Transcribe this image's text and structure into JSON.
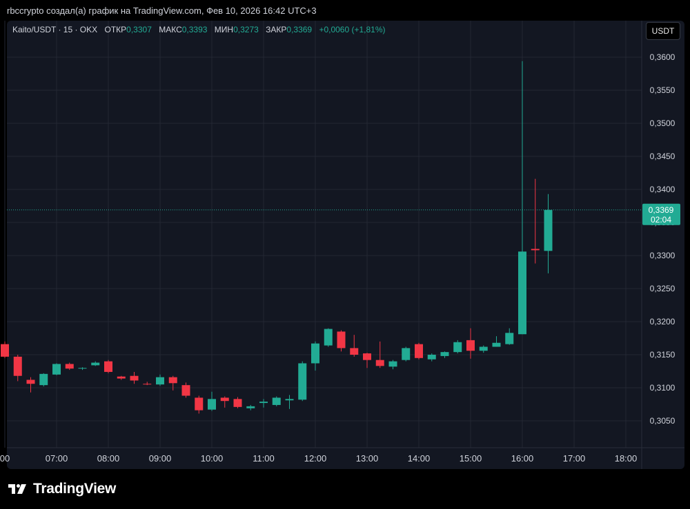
{
  "caption": "rbccrypto создал(а) график на TradingView.com, Фев 10, 2026 16:42 UTC+3",
  "legend": {
    "symbol": "Kaito/USDT · 15 · OKX",
    "open_label": "ОТКР",
    "open_value": "0,3307",
    "high_label": "МАКС",
    "high_value": "0,3393",
    "low_label": "МИН",
    "low_value": "0,3273",
    "close_label": "ЗАКР",
    "close_value": "0,3369",
    "change": "+0,0060 (+1,81%)"
  },
  "currency_button": "USDT",
  "price_tag": {
    "price": "0,3369",
    "countdown": "02:04"
  },
  "brand": "TradingView",
  "colors": {
    "up": "#22ab94",
    "down": "#f23645",
    "background": "#131722",
    "grid": "#232733",
    "axis_text": "#d1d4dc"
  },
  "chart_data": {
    "type": "candlestick",
    "interval": "15",
    "x_tick_labels": [
      "00",
      "07:00",
      "08:00",
      "09:00",
      "10:00",
      "11:00",
      "12:00",
      "13:00",
      "14:00",
      "15:00",
      "16:00",
      "17:00",
      "18:00"
    ],
    "y_tick_labels": [
      "0,3050",
      "0,3100",
      "0,3150",
      "0,3200",
      "0,3250",
      "0,3300",
      "0,3350",
      "0,3400",
      "0,3450",
      "0,3500",
      "0,3550",
      "0,3600"
    ],
    "y_range": [
      0.302,
      0.3663
    ],
    "x_range_hours": [
      6.0,
      18.2
    ],
    "last_price": 0.3369,
    "candles": [
      {
        "t": 6.0,
        "o": 0.3166,
        "h": 0.317,
        "l": 0.3145,
        "c": 0.3147
      },
      {
        "t": 6.25,
        "o": 0.3147,
        "h": 0.315,
        "l": 0.311,
        "c": 0.3118
      },
      {
        "t": 6.5,
        "o": 0.3112,
        "h": 0.3116,
        "l": 0.3093,
        "c": 0.3106
      },
      {
        "t": 6.75,
        "o": 0.3104,
        "h": 0.3122,
        "l": 0.3102,
        "c": 0.3121
      },
      {
        "t": 7.0,
        "o": 0.312,
        "h": 0.3137,
        "l": 0.3119,
        "c": 0.3136
      },
      {
        "t": 7.25,
        "o": 0.3136,
        "h": 0.3138,
        "l": 0.3127,
        "c": 0.3129
      },
      {
        "t": 7.5,
        "o": 0.3129,
        "h": 0.3131,
        "l": 0.3127,
        "c": 0.313
      },
      {
        "t": 7.75,
        "o": 0.3134,
        "h": 0.314,
        "l": 0.3133,
        "c": 0.3138
      },
      {
        "t": 8.0,
        "o": 0.314,
        "h": 0.3142,
        "l": 0.3122,
        "c": 0.3124
      },
      {
        "t": 8.25,
        "o": 0.3117,
        "h": 0.3118,
        "l": 0.3112,
        "c": 0.3114
      },
      {
        "t": 8.5,
        "o": 0.3118,
        "h": 0.3124,
        "l": 0.3106,
        "c": 0.3111
      },
      {
        "t": 8.75,
        "o": 0.3106,
        "h": 0.3109,
        "l": 0.3104,
        "c": 0.3105
      },
      {
        "t": 9.0,
        "o": 0.3105,
        "h": 0.312,
        "l": 0.3103,
        "c": 0.3116
      },
      {
        "t": 9.25,
        "o": 0.3116,
        "h": 0.3118,
        "l": 0.3096,
        "c": 0.3107
      },
      {
        "t": 9.5,
        "o": 0.3104,
        "h": 0.3108,
        "l": 0.3085,
        "c": 0.3088
      },
      {
        "t": 9.75,
        "o": 0.3085,
        "h": 0.3088,
        "l": 0.3061,
        "c": 0.3066
      },
      {
        "t": 10.0,
        "o": 0.3067,
        "h": 0.3094,
        "l": 0.3065,
        "c": 0.3083
      },
      {
        "t": 10.25,
        "o": 0.3085,
        "h": 0.3087,
        "l": 0.307,
        "c": 0.308
      },
      {
        "t": 10.5,
        "o": 0.3083,
        "h": 0.3086,
        "l": 0.3069,
        "c": 0.3071
      },
      {
        "t": 10.75,
        "o": 0.3069,
        "h": 0.3074,
        "l": 0.3066,
        "c": 0.3072
      },
      {
        "t": 11.0,
        "o": 0.3077,
        "h": 0.3083,
        "l": 0.307,
        "c": 0.3079
      },
      {
        "t": 11.25,
        "o": 0.3074,
        "h": 0.3087,
        "l": 0.3072,
        "c": 0.3085
      },
      {
        "t": 11.5,
        "o": 0.3081,
        "h": 0.3089,
        "l": 0.3068,
        "c": 0.3083
      },
      {
        "t": 11.75,
        "o": 0.3082,
        "h": 0.314,
        "l": 0.308,
        "c": 0.3137
      },
      {
        "t": 12.0,
        "o": 0.3137,
        "h": 0.317,
        "l": 0.3126,
        "c": 0.3167
      },
      {
        "t": 12.25,
        "o": 0.3164,
        "h": 0.319,
        "l": 0.3162,
        "c": 0.3189
      },
      {
        "t": 12.5,
        "o": 0.3185,
        "h": 0.3187,
        "l": 0.3155,
        "c": 0.316
      },
      {
        "t": 12.75,
        "o": 0.316,
        "h": 0.318,
        "l": 0.3147,
        "c": 0.315
      },
      {
        "t": 13.0,
        "o": 0.3152,
        "h": 0.3153,
        "l": 0.313,
        "c": 0.3142
      },
      {
        "t": 13.25,
        "o": 0.3142,
        "h": 0.317,
        "l": 0.313,
        "c": 0.3133
      },
      {
        "t": 13.5,
        "o": 0.3132,
        "h": 0.3142,
        "l": 0.3128,
        "c": 0.314
      },
      {
        "t": 13.75,
        "o": 0.3142,
        "h": 0.3162,
        "l": 0.314,
        "c": 0.316
      },
      {
        "t": 14.0,
        "o": 0.3166,
        "h": 0.3168,
        "l": 0.3143,
        "c": 0.3145
      },
      {
        "t": 14.25,
        "o": 0.3143,
        "h": 0.3152,
        "l": 0.314,
        "c": 0.315
      },
      {
        "t": 14.5,
        "o": 0.3148,
        "h": 0.3155,
        "l": 0.3145,
        "c": 0.3154
      },
      {
        "t": 14.75,
        "o": 0.3154,
        "h": 0.3172,
        "l": 0.3152,
        "c": 0.3169
      },
      {
        "t": 15.0,
        "o": 0.3172,
        "h": 0.319,
        "l": 0.3144,
        "c": 0.3156
      },
      {
        "t": 15.25,
        "o": 0.3156,
        "h": 0.3164,
        "l": 0.3153,
        "c": 0.3162
      },
      {
        "t": 15.5,
        "o": 0.3162,
        "h": 0.3178,
        "l": 0.3162,
        "c": 0.3168
      },
      {
        "t": 15.75,
        "o": 0.3166,
        "h": 0.319,
        "l": 0.3165,
        "c": 0.3183
      },
      {
        "t": 16.0,
        "o": 0.3181,
        "h": 0.3594,
        "l": 0.3181,
        "c": 0.3306
      },
      {
        "t": 16.25,
        "o": 0.331,
        "h": 0.3416,
        "l": 0.3288,
        "c": 0.3308
      },
      {
        "t": 16.5,
        "o": 0.3307,
        "h": 0.3393,
        "l": 0.3273,
        "c": 0.3369
      }
    ]
  }
}
